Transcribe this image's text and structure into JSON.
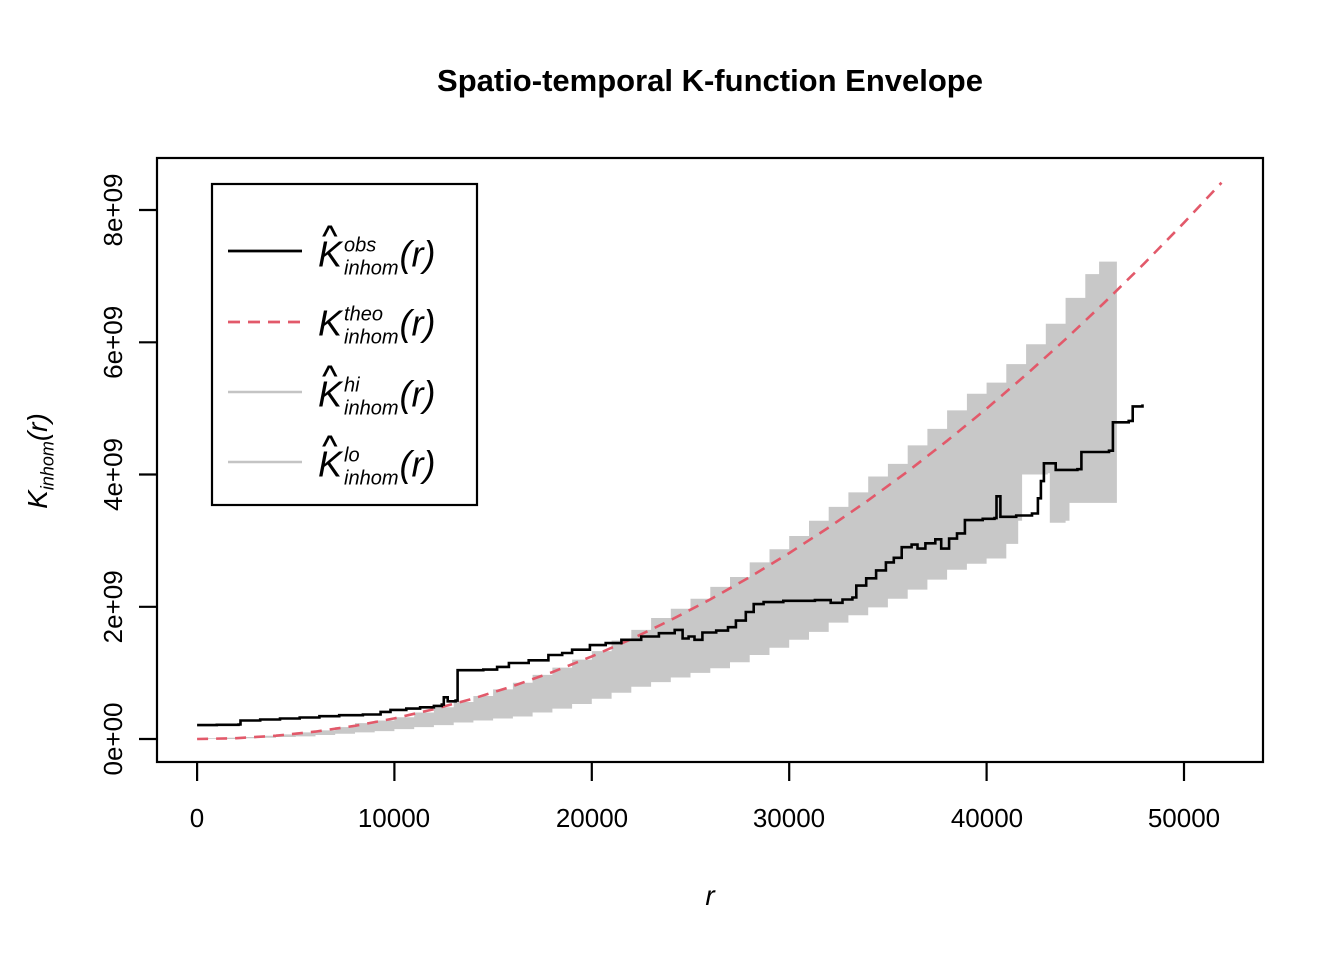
{
  "title": "Spatio-temporal K-function Envelope",
  "chart_data": {
    "type": "line",
    "title": "Spatio-temporal K-function Envelope",
    "xlabel": "r",
    "ylabel_base": "K",
    "ylabel_sub": "inhom",
    "ylabel_arg": "(r)",
    "grid": false,
    "legend_position": "top-left",
    "x_ticks": [
      0,
      10000,
      20000,
      30000,
      40000,
      50000
    ],
    "x_tick_labels": [
      "0",
      "10000",
      "20000",
      "30000",
      "40000",
      "50000"
    ],
    "y_ticks_1e9": [
      0,
      2,
      4,
      6,
      8
    ],
    "y_tick_labels": [
      "0e+00",
      "2e+09",
      "4e+09",
      "6e+09",
      "8e+09"
    ],
    "xlim": [
      -2076,
      54060
    ],
    "ylim_1e9": [
      -0.35,
      8.79
    ],
    "y_unit": 1000000000,
    "envelope_fill": "#C8C8C8",
    "series": [
      {
        "name": "obs",
        "label": "hat(K)[inhom]^obs(r)",
        "style": "step-solid",
        "color": "#000000",
        "points_1e9": [
          [
            0,
            0.21
          ],
          [
            1000,
            0.215
          ],
          [
            2100,
            0.22
          ],
          [
            2200,
            0.28
          ],
          [
            3200,
            0.295
          ],
          [
            4200,
            0.31
          ],
          [
            5200,
            0.325
          ],
          [
            6200,
            0.345
          ],
          [
            7200,
            0.36
          ],
          [
            8400,
            0.37
          ],
          [
            9300,
            0.41
          ],
          [
            9800,
            0.44
          ],
          [
            10600,
            0.46
          ],
          [
            11300,
            0.48
          ],
          [
            12000,
            0.5
          ],
          [
            12400,
            0.52
          ],
          [
            12500,
            0.63
          ],
          [
            12700,
            0.57
          ],
          [
            13100,
            0.58
          ],
          [
            13200,
            1.04
          ],
          [
            14500,
            1.05
          ],
          [
            15200,
            1.09
          ],
          [
            15800,
            1.15
          ],
          [
            16800,
            1.19
          ],
          [
            17800,
            1.27
          ],
          [
            18500,
            1.3
          ],
          [
            19000,
            1.35
          ],
          [
            19900,
            1.42
          ],
          [
            20700,
            1.45
          ],
          [
            21500,
            1.5
          ],
          [
            22500,
            1.55
          ],
          [
            23400,
            1.6
          ],
          [
            24200,
            1.65
          ],
          [
            24600,
            1.52
          ],
          [
            24900,
            1.55
          ],
          [
            25200,
            1.5
          ],
          [
            25600,
            1.61
          ],
          [
            26300,
            1.64
          ],
          [
            26900,
            1.69
          ],
          [
            27300,
            1.79
          ],
          [
            27800,
            1.92
          ],
          [
            28200,
            2.04
          ],
          [
            28700,
            2.07
          ],
          [
            29700,
            2.09
          ],
          [
            31300,
            2.1
          ],
          [
            32100,
            2.06
          ],
          [
            32700,
            2.11
          ],
          [
            33200,
            2.14
          ],
          [
            33400,
            2.32
          ],
          [
            33900,
            2.43
          ],
          [
            34400,
            2.55
          ],
          [
            34900,
            2.67
          ],
          [
            35300,
            2.74
          ],
          [
            35700,
            2.9
          ],
          [
            36200,
            2.94
          ],
          [
            36500,
            2.88
          ],
          [
            36900,
            2.96
          ],
          [
            37400,
            3.02
          ],
          [
            37700,
            2.88
          ],
          [
            38100,
            3.03
          ],
          [
            38500,
            3.11
          ],
          [
            38900,
            3.31
          ],
          [
            39800,
            3.33
          ],
          [
            40400,
            3.34
          ],
          [
            40500,
            3.67
          ],
          [
            40700,
            3.36
          ],
          [
            41500,
            3.38
          ],
          [
            42300,
            3.41
          ],
          [
            42600,
            3.64
          ],
          [
            42750,
            3.9
          ],
          [
            42900,
            4.17
          ],
          [
            43300,
            4.17
          ],
          [
            43500,
            4.07
          ],
          [
            44600,
            4.08
          ],
          [
            44800,
            4.34
          ],
          [
            46200,
            4.36
          ],
          [
            46400,
            4.79
          ],
          [
            47200,
            4.81
          ],
          [
            47400,
            5.03
          ],
          [
            47900,
            5.06
          ]
        ]
      },
      {
        "name": "theo",
        "label": "K[inhom]^theo(r)",
        "style": "dashed",
        "color": "#E2596A",
        "points_1e9": [
          [
            0,
            0
          ],
          [
            2000,
            0.012
          ],
          [
            4000,
            0.05
          ],
          [
            6000,
            0.112
          ],
          [
            8000,
            0.2
          ],
          [
            10000,
            0.312
          ],
          [
            12000,
            0.45
          ],
          [
            14000,
            0.612
          ],
          [
            16000,
            0.8
          ],
          [
            18000,
            1.012
          ],
          [
            20000,
            1.249
          ],
          [
            22000,
            1.511
          ],
          [
            24000,
            1.799
          ],
          [
            26000,
            2.111
          ],
          [
            28000,
            2.448
          ],
          [
            30000,
            2.811
          ],
          [
            32000,
            3.198
          ],
          [
            34000,
            3.61
          ],
          [
            36000,
            4.047
          ],
          [
            38000,
            4.509
          ],
          [
            40000,
            4.997
          ],
          [
            42000,
            5.509
          ],
          [
            44000,
            6.046
          ],
          [
            46000,
            6.609
          ],
          [
            48000,
            7.196
          ],
          [
            50000,
            7.808
          ],
          [
            51900,
            8.413
          ]
        ]
      },
      {
        "name": "hi",
        "label": "hat(K)[inhom]^hi(r)",
        "style": "step-envelope-upper",
        "color": "#C4C4C4",
        "points_1e9": [
          [
            0,
            0.01
          ],
          [
            1000,
            0.02
          ],
          [
            2000,
            0.03
          ],
          [
            3000,
            0.05
          ],
          [
            4000,
            0.07
          ],
          [
            5000,
            0.1
          ],
          [
            6000,
            0.13
          ],
          [
            7000,
            0.18
          ],
          [
            8000,
            0.24
          ],
          [
            9000,
            0.28
          ],
          [
            10000,
            0.33
          ],
          [
            11000,
            0.4
          ],
          [
            12000,
            0.48
          ],
          [
            13000,
            0.56
          ],
          [
            14000,
            0.65
          ],
          [
            15000,
            0.75
          ],
          [
            16000,
            0.85
          ],
          [
            17000,
            0.97
          ],
          [
            18000,
            1.08
          ],
          [
            19000,
            1.2
          ],
          [
            20000,
            1.33
          ],
          [
            21000,
            1.49
          ],
          [
            22000,
            1.65
          ],
          [
            23000,
            1.83
          ],
          [
            24000,
            1.97
          ],
          [
            25000,
            2.12
          ],
          [
            26000,
            2.3
          ],
          [
            27000,
            2.45
          ],
          [
            28000,
            2.67
          ],
          [
            29000,
            2.87
          ],
          [
            30000,
            3.07
          ],
          [
            31000,
            3.3
          ],
          [
            32000,
            3.51
          ],
          [
            33000,
            3.73
          ],
          [
            34000,
            3.97
          ],
          [
            35000,
            4.16
          ],
          [
            36000,
            4.44
          ],
          [
            37000,
            4.69
          ],
          [
            38000,
            4.97
          ],
          [
            39000,
            5.22
          ],
          [
            40000,
            5.39
          ],
          [
            41000,
            5.67
          ],
          [
            42000,
            5.97
          ],
          [
            43000,
            6.28
          ],
          [
            44000,
            6.67
          ],
          [
            45000,
            7.03
          ],
          [
            45700,
            7.22
          ],
          [
            46600,
            7.32
          ]
        ]
      },
      {
        "name": "lo",
        "label": "hat(K)[inhom]^lo(r)",
        "style": "step-envelope-lower",
        "color": "#C4C4C4",
        "points_1e9": [
          [
            0,
            0.0
          ],
          [
            1000,
            0.0
          ],
          [
            2000,
            0.01
          ],
          [
            3000,
            0.02
          ],
          [
            4000,
            0.03
          ],
          [
            5000,
            0.04
          ],
          [
            6000,
            0.06
          ],
          [
            7000,
            0.08
          ],
          [
            8000,
            0.1
          ],
          [
            9000,
            0.12
          ],
          [
            10000,
            0.15
          ],
          [
            11000,
            0.18
          ],
          [
            12000,
            0.21
          ],
          [
            13000,
            0.25
          ],
          [
            14000,
            0.28
          ],
          [
            15000,
            0.31
          ],
          [
            16000,
            0.34
          ],
          [
            17000,
            0.4
          ],
          [
            18000,
            0.46
          ],
          [
            19000,
            0.53
          ],
          [
            20000,
            0.61
          ],
          [
            21000,
            0.7
          ],
          [
            22000,
            0.79
          ],
          [
            23000,
            0.86
          ],
          [
            24000,
            0.93
          ],
          [
            25000,
            1.0
          ],
          [
            26000,
            1.07
          ],
          [
            27000,
            1.16
          ],
          [
            28000,
            1.27
          ],
          [
            29000,
            1.38
          ],
          [
            30000,
            1.5
          ],
          [
            31000,
            1.62
          ],
          [
            32000,
            1.76
          ],
          [
            33000,
            1.87
          ],
          [
            34000,
            1.99
          ],
          [
            35000,
            2.12
          ],
          [
            36000,
            2.26
          ],
          [
            37000,
            2.41
          ],
          [
            38000,
            2.56
          ],
          [
            39000,
            2.65
          ],
          [
            40000,
            2.73
          ],
          [
            41000,
            2.95
          ],
          [
            41600,
            3.3
          ],
          [
            41800,
            4.0
          ],
          [
            43100,
            4.02
          ],
          [
            43200,
            3.27
          ],
          [
            44000,
            3.3
          ],
          [
            44200,
            3.57
          ],
          [
            46600,
            3.6
          ]
        ]
      }
    ]
  },
  "legend": {
    "entries": [
      {
        "id": "obs",
        "hat": "∧",
        "base": "K",
        "sup": "obs",
        "sub": "inhom",
        "arg": "(r)",
        "line_color": "#000000",
        "line_style": "solid"
      },
      {
        "id": "theo",
        "hat": "",
        "base": "K",
        "sup": "theo",
        "sub": "inhom",
        "arg": "(r)",
        "line_color": "#E2596A",
        "line_style": "dashed"
      },
      {
        "id": "hi",
        "hat": "∧",
        "base": "K",
        "sup": "hi",
        "sub": "inhom",
        "arg": "(r)",
        "line_color": "#C4C4C4",
        "line_style": "solid"
      },
      {
        "id": "lo",
        "hat": "∧",
        "base": "K",
        "sup": "lo",
        "sub": "inhom",
        "arg": "(r)",
        "line_color": "#C4C4C4",
        "line_style": "solid"
      }
    ]
  }
}
